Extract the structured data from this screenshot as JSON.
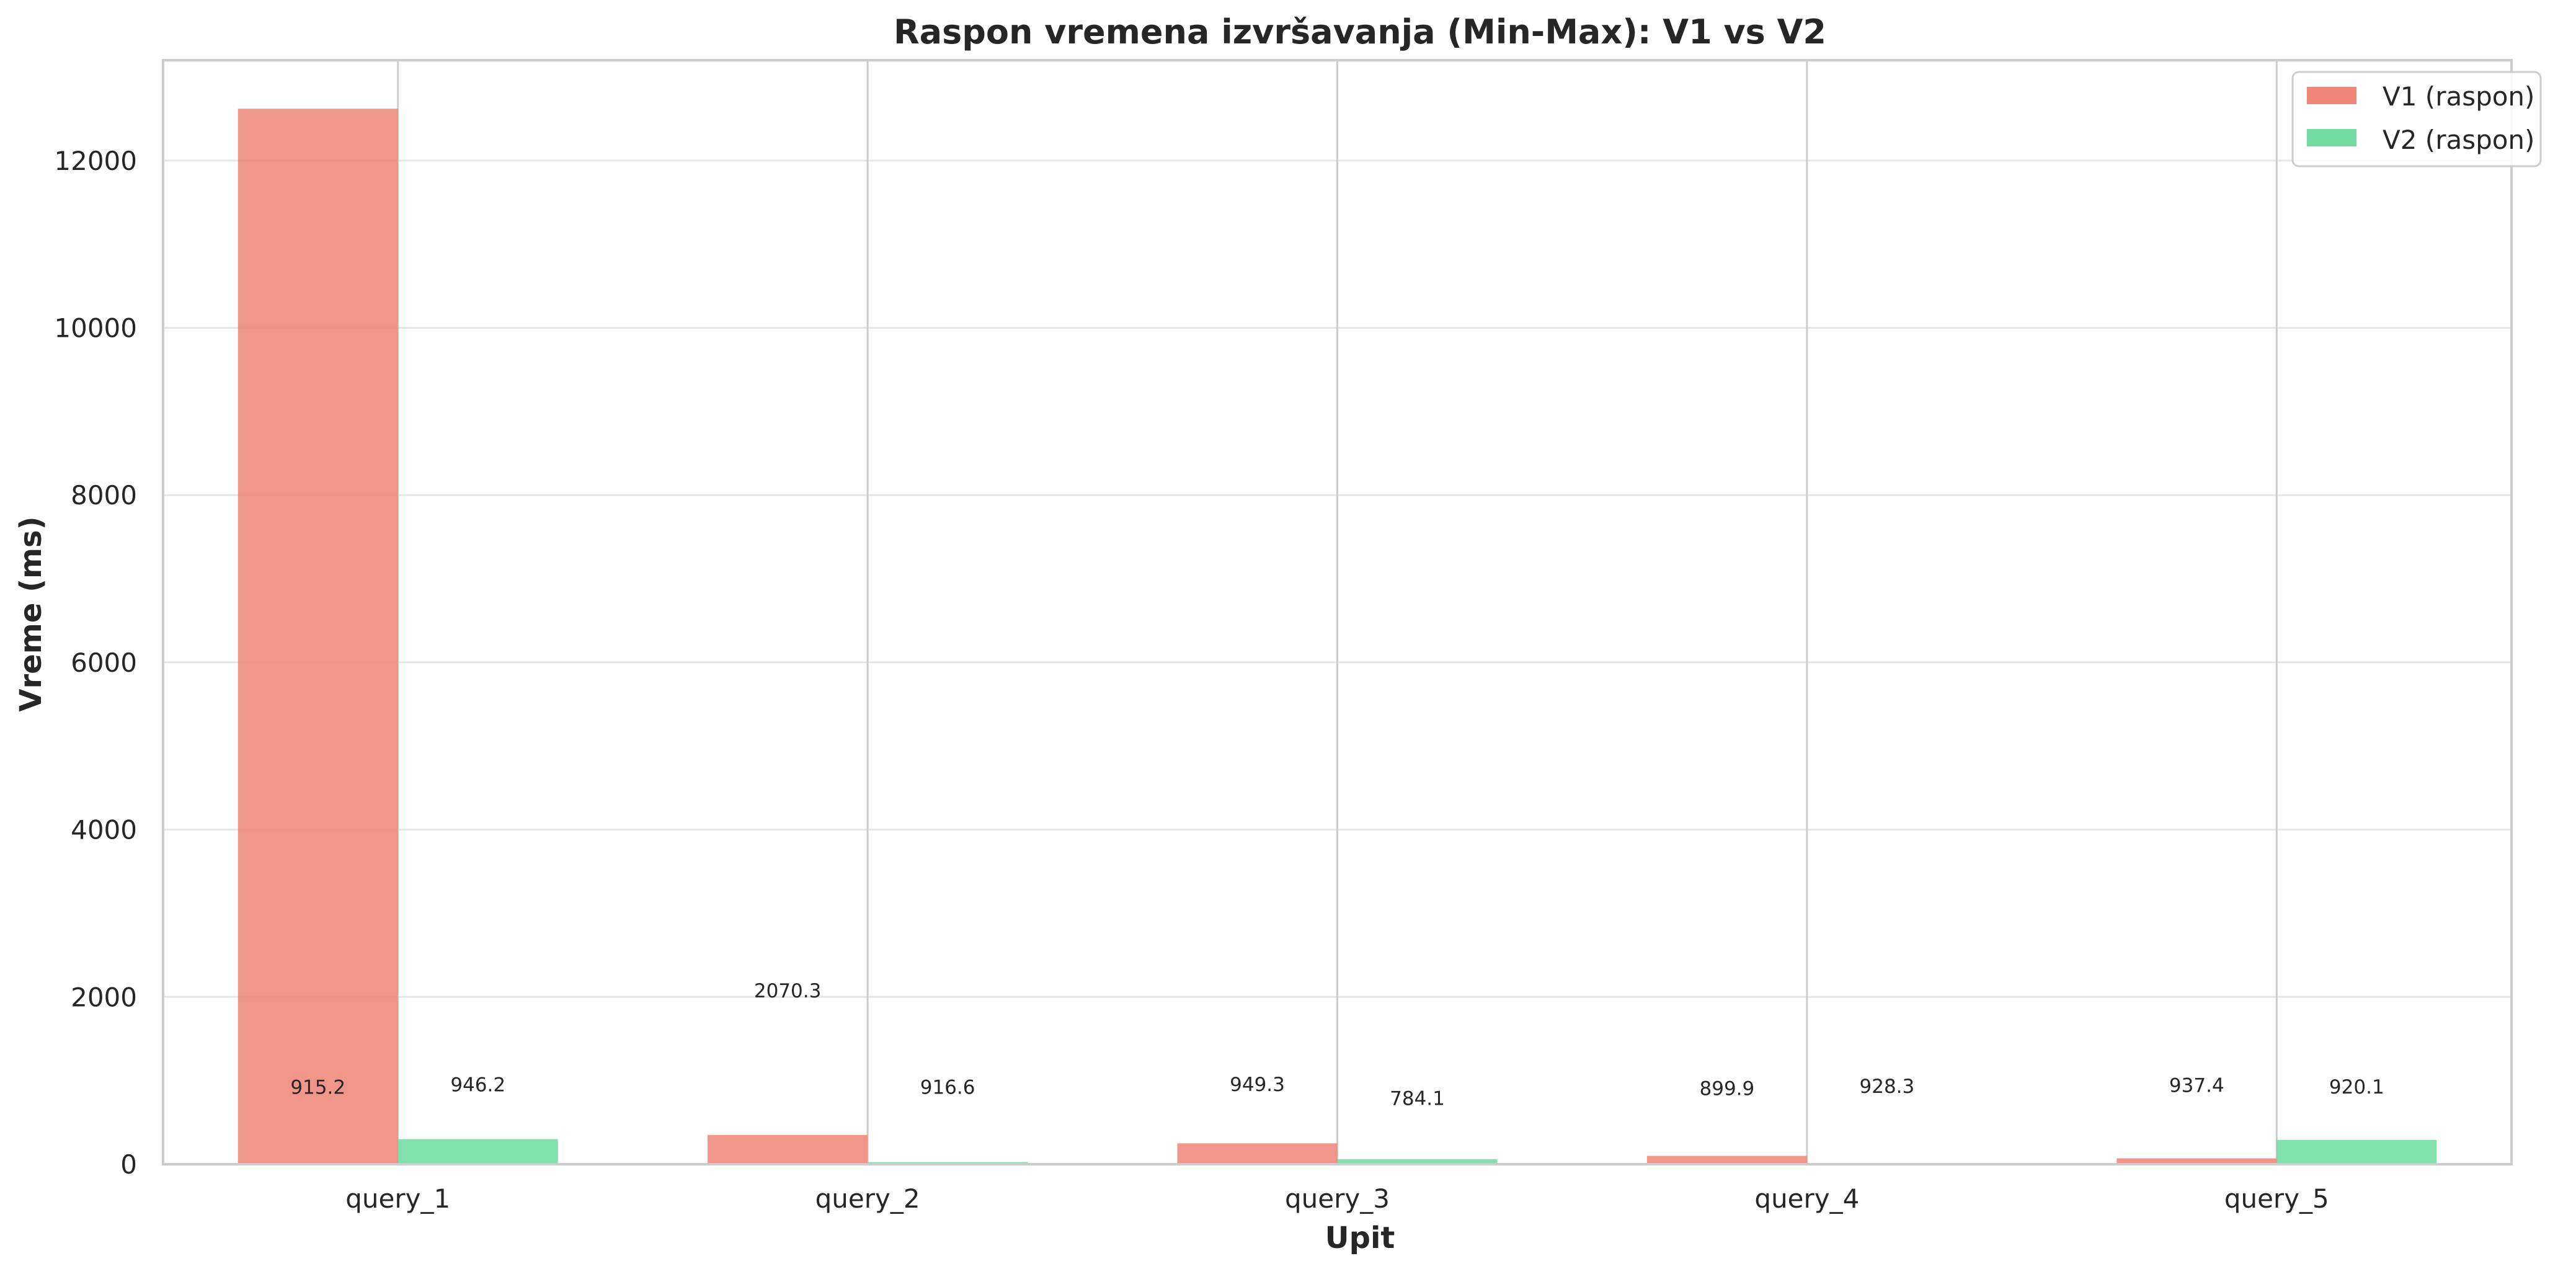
{
  "chart_data": {
    "type": "bar",
    "title": "Raspon vremena izvršavanja (Min-Max): V1 vs V2",
    "xlabel": "Upit",
    "ylabel": "Vreme (ms)",
    "categories": [
      "query_1",
      "query_2",
      "query_3",
      "query_4",
      "query_5"
    ],
    "series": [
      {
        "name": "V1 (raspon)",
        "color": "#ee8679",
        "values": [
          12620,
          350,
          250,
          100,
          70
        ],
        "labels": [
          "915.2",
          "2070.3",
          "949.3",
          "899.9",
          "937.4"
        ],
        "label_values": [
          915.2,
          2070.3,
          949.3,
          899.9,
          937.4
        ]
      },
      {
        "name": "V2 (raspon)",
        "color": "#72dba1",
        "values": [
          300,
          25,
          60,
          12,
          290
        ],
        "labels": [
          "946.2",
          "916.6",
          "784.1",
          "928.3",
          "920.1"
        ],
        "label_values": [
          946.2,
          916.6,
          784.1,
          928.3,
          920.1
        ]
      }
    ],
    "yticks": [
      "0",
      "2000",
      "4000",
      "6000",
      "8000",
      "10000",
      "12000"
    ],
    "ylim": [
      0,
      13200
    ],
    "grid": true,
    "legend_position": "top-right"
  }
}
